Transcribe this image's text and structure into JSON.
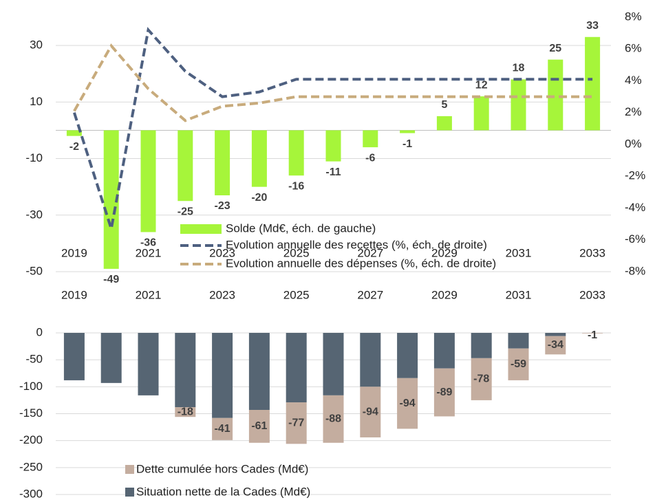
{
  "chart_data": [
    {
      "type": "combo",
      "categories": [
        "2019",
        null,
        "2021",
        null,
        "2023",
        null,
        "2025",
        null,
        "2027",
        null,
        "2029",
        null,
        "2031",
        null,
        "2033"
      ],
      "series": [
        {
          "name": "Solde (Md€, éch. de gauche)",
          "type": "bar",
          "color": "#a6f53a",
          "values": [
            -2,
            -49,
            -36,
            -25,
            -23,
            -20,
            -16,
            -11,
            -6,
            -1,
            5,
            12,
            18,
            25,
            33
          ]
        },
        {
          "name": "Evolution annuelle des recettes (%, éch. de droite)",
          "type": "line",
          "axis": "y2",
          "color": "#4e6080",
          "values": [
            2.0,
            -5.3,
            7.2,
            4.6,
            3.0,
            3.3,
            4.1,
            4.1,
            4.1,
            4.1,
            4.1,
            4.1,
            4.1,
            4.1,
            4.1
          ]
        },
        {
          "name": "Evolution annuelle des dépenses (%, éch. de droite)",
          "type": "line",
          "axis": "y2",
          "color": "#c8ab7c",
          "values": [
            2.1,
            6.2,
            3.5,
            1.5,
            2.4,
            2.6,
            3.0,
            3.0,
            3.0,
            3.0,
            3.0,
            3.0,
            3.0,
            3.0,
            3.0
          ]
        }
      ],
      "ylim": [
        -50,
        40
      ],
      "yticks": [
        -50,
        -30,
        -10,
        10,
        30
      ],
      "y2lim": [
        -8,
        8
      ],
      "y2ticks": [
        {
          "value": -8,
          "label": "-8%"
        },
        {
          "value": -6,
          "label": "-6%"
        },
        {
          "value": -4,
          "label": "-4%"
        },
        {
          "value": -2,
          "label": "-2%"
        },
        {
          "value": 0,
          "label": "0%"
        },
        {
          "value": 2,
          "label": "2%"
        },
        {
          "value": 4,
          "label": "4%"
        },
        {
          "value": 6,
          "label": "6%"
        },
        {
          "value": 8,
          "label": "8%"
        }
      ],
      "grid": true
    },
    {
      "type": "stacked_bar",
      "categories": [
        "2019",
        null,
        "2021",
        null,
        "2023",
        null,
        "2025",
        null,
        "2027",
        null,
        "2029",
        null,
        "2031",
        null,
        "2033"
      ],
      "series": [
        {
          "name": "Situation nette de la Cades (Md€)",
          "color": "#566573",
          "values": [
            -88,
            -93,
            -116,
            -138,
            -158,
            -143,
            -129,
            -116,
            -100,
            -84,
            -66,
            -47,
            -29,
            -6,
            0
          ]
        },
        {
          "name": "Dette cumulée hors Cades (Md€)",
          "color": "#c4ad9f",
          "values": [
            null,
            null,
            null,
            -18,
            -41,
            -61,
            -77,
            -88,
            -94,
            -94,
            -89,
            -78,
            -59,
            -34,
            -1
          ]
        }
      ],
      "ylim": [
        -300,
        0
      ],
      "yticks": [
        -300,
        -250,
        -200,
        -150,
        -100,
        -50,
        0
      ],
      "grid": true
    }
  ]
}
